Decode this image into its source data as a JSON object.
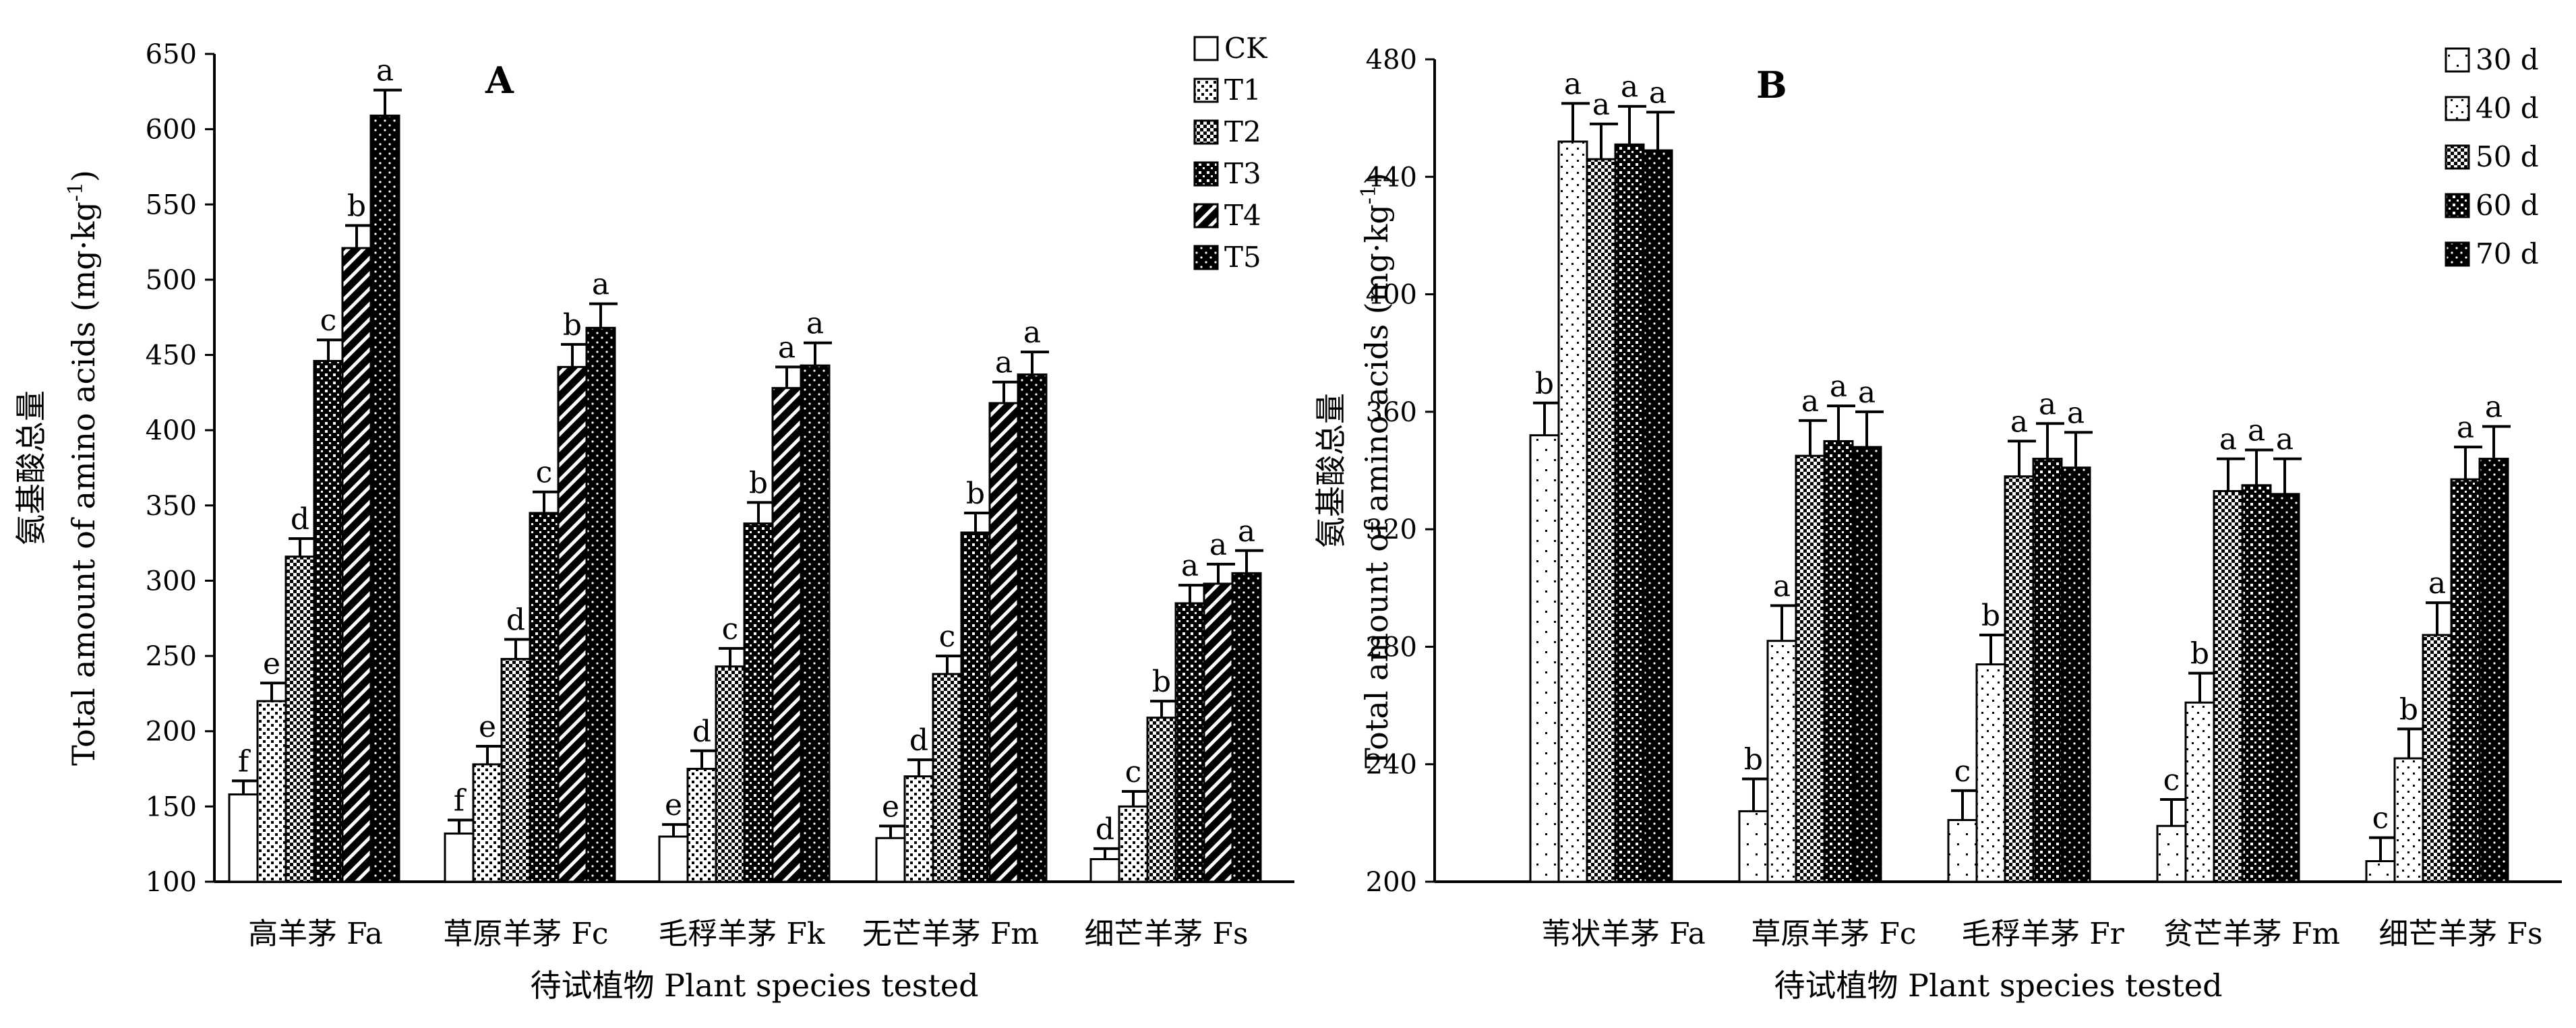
{
  "chart_data": [
    {
      "type": "bar",
      "panel_label": "A",
      "ylabel_zh": "氨基酸总量",
      "ylabel_en": "Total amount of amino acids",
      "ylabel_unit": "(mg·kg",
      "ylabel_unit_sup": "-1",
      "ylabel_unit_close": ")",
      "xlabel": "待试植物 Plant species tested",
      "ylim": [
        100,
        650
      ],
      "yticks": [
        100,
        150,
        200,
        250,
        300,
        350,
        400,
        450,
        500,
        550,
        600,
        650
      ],
      "categories": [
        "高羊茅 Fa",
        "草原羊茅 Fc",
        "毛稃羊茅 Fk",
        "无芒羊茅 Fm",
        "细芒羊茅 Fs"
      ],
      "legend_position": "top-right",
      "series": [
        {
          "name": "CK",
          "pattern": "white",
          "values": [
            158,
            132,
            130,
            129,
            115
          ],
          "errors": [
            9,
            9,
            8,
            8,
            7
          ],
          "labels": [
            "f",
            "f",
            "e",
            "e",
            "d"
          ]
        },
        {
          "name": "T1",
          "pattern": "crossdot",
          "values": [
            220,
            178,
            175,
            170,
            150
          ],
          "errors": [
            12,
            12,
            12,
            11,
            10
          ],
          "labels": [
            "e",
            "e",
            "d",
            "d",
            "c"
          ]
        },
        {
          "name": "T2",
          "pattern": "checker",
          "values": [
            316,
            248,
            243,
            238,
            209
          ],
          "errors": [
            12,
            13,
            12,
            12,
            11
          ],
          "labels": [
            "d",
            "d",
            "c",
            "c",
            "b"
          ]
        },
        {
          "name": "T3",
          "pattern": "grid",
          "values": [
            446,
            345,
            338,
            332,
            285
          ],
          "errors": [
            14,
            14,
            14,
            13,
            12
          ],
          "labels": [
            "c",
            "c",
            "b",
            "b",
            "a"
          ]
        },
        {
          "name": "T4",
          "pattern": "hatch",
          "values": [
            521,
            442,
            428,
            418,
            298
          ],
          "errors": [
            15,
            15,
            14,
            14,
            13
          ],
          "labels": [
            "b",
            "b",
            "a",
            "a",
            "a"
          ]
        },
        {
          "name": "T5",
          "pattern": "black",
          "values": [
            609,
            468,
            443,
            437,
            305
          ],
          "errors": [
            17,
            16,
            15,
            15,
            15
          ],
          "labels": [
            "a",
            "a",
            "a",
            "a",
            "a"
          ]
        }
      ]
    },
    {
      "type": "bar",
      "panel_label": "B",
      "ylabel_zh": "氨基酸总量",
      "ylabel_en": "Total amount of amino acids",
      "ylabel_unit": "(mg·kg",
      "ylabel_unit_sup": "-1",
      "ylabel_unit_close": ")",
      "xlabel": "待试植物  Plant species tested",
      "ylim": [
        200,
        480
      ],
      "yticks": [
        200,
        240,
        280,
        320,
        360,
        400,
        440,
        480
      ],
      "categories": [
        "苇状羊茅 Fa",
        "草原羊茅 Fc",
        "毛稃羊茅 Fr",
        "贫芒羊茅 Fm",
        "细芒羊茅 Fs"
      ],
      "legend_position": "top-right",
      "series": [
        {
          "name": "30 d",
          "pattern": "sparse",
          "values": [
            352,
            224,
            221,
            219,
            207
          ],
          "errors": [
            11,
            11,
            10,
            9,
            8
          ],
          "labels": [
            "b",
            "b",
            "c",
            "c",
            "c"
          ]
        },
        {
          "name": "40 d",
          "pattern": "dots",
          "values": [
            452,
            282,
            274,
            261,
            242
          ],
          "errors": [
            13,
            12,
            10,
            10,
            10
          ],
          "labels": [
            "a",
            "a",
            "b",
            "b",
            "b"
          ]
        },
        {
          "name": "50 d",
          "pattern": "checker",
          "values": [
            446,
            345,
            338,
            333,
            284
          ],
          "errors": [
            12,
            12,
            12,
            11,
            11
          ],
          "labels": [
            "a",
            "a",
            "a",
            "a",
            "a"
          ]
        },
        {
          "name": "60 d",
          "pattern": "grid",
          "values": [
            451,
            350,
            344,
            335,
            337
          ],
          "errors": [
            13,
            12,
            12,
            12,
            11
          ],
          "labels": [
            "a",
            "a",
            "a",
            "a",
            "a"
          ]
        },
        {
          "name": "70 d",
          "pattern": "black",
          "values": [
            449,
            348,
            341,
            332,
            344
          ],
          "errors": [
            13,
            12,
            12,
            12,
            11
          ],
          "labels": [
            "a",
            "a",
            "a",
            "a",
            "a"
          ]
        }
      ]
    }
  ]
}
